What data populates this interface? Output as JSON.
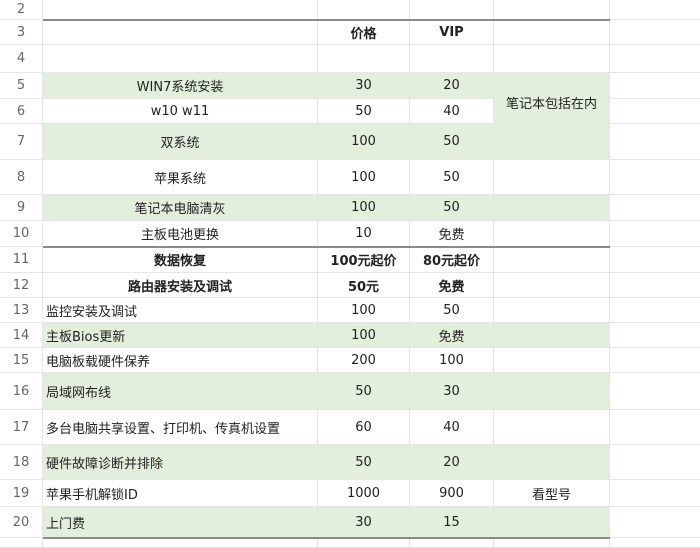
{
  "rows": [
    {
      "n": "2",
      "a": "",
      "b": "",
      "c": "",
      "d": ""
    },
    {
      "n": "3",
      "a": "",
      "b": "价格",
      "c": "VIP",
      "d": ""
    },
    {
      "n": "4",
      "a": "",
      "b": "",
      "c": "",
      "d": ""
    },
    {
      "n": "5",
      "a": "WIN7系统安装",
      "b": "30",
      "c": "20",
      "d": ""
    },
    {
      "n": "6",
      "a": "w10   w11",
      "b": "50",
      "c": "40",
      "d": ""
    },
    {
      "n": "7",
      "a": "双系统",
      "b": "100",
      "c": "50",
      "d": ""
    },
    {
      "n": "8",
      "a": "苹果系统",
      "b": "100",
      "c": "50",
      "d": ""
    },
    {
      "n": "9",
      "a": "笔记本电脑清灰",
      "b": "100",
      "c": "50",
      "d": ""
    },
    {
      "n": "10",
      "a": "主板电池更换",
      "b": "10",
      "c": "免费",
      "d": ""
    },
    {
      "n": "11",
      "a": "数据恢复",
      "b": "100元起价",
      "c": "80元起价",
      "d": ""
    },
    {
      "n": "12",
      "a": "路由器安装及调试",
      "b": "50元",
      "c": "免费",
      "d": ""
    },
    {
      "n": "13",
      "a": "监控安装及调试",
      "b": "100",
      "c": "50",
      "d": ""
    },
    {
      "n": "14",
      "a": "主板Bios更新",
      "b": "100",
      "c": "免费",
      "d": ""
    },
    {
      "n": "15",
      "a": "电脑板载硬件保养",
      "b": "200",
      "c": "100",
      "d": ""
    },
    {
      "n": "16",
      "a": "局域网布线",
      "b": "50",
      "c": "30",
      "d": ""
    },
    {
      "n": "17",
      "a": "多台电脑共享设置、打印机、传真机设置",
      "b": "60",
      "c": "40",
      "d": ""
    },
    {
      "n": "18",
      "a": "硬件故障诊断并排除",
      "b": "50",
      "c": "20",
      "d": ""
    },
    {
      "n": "19",
      "a": "苹果手机解锁ID",
      "b": "1000",
      "c": "900",
      "d": "看型号"
    },
    {
      "n": "20",
      "a": "上门费",
      "b": "30",
      "c": "15",
      "d": ""
    },
    {
      "n": "",
      "a": "",
      "b": "",
      "c": "",
      "d": ""
    }
  ],
  "merged_note": "笔记本包括在内",
  "colors": {
    "row_fill": "#e2efdc",
    "grid": "#e6e6e6"
  }
}
